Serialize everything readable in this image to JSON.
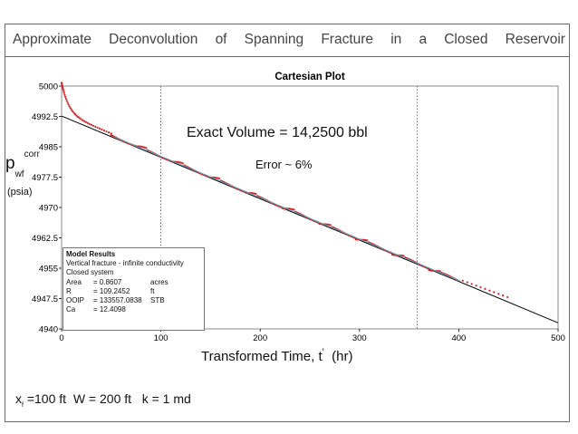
{
  "slide": {
    "title_words": [
      "Approximate",
      "Deconvolution",
      "of",
      "Spanning",
      "Fracture",
      "in",
      "a",
      "Closed",
      "Reservoir"
    ]
  },
  "chart_data": {
    "type": "scatter",
    "title": "Cartesian Plot",
    "xlabel_main": "Transformed  Time, t",
    "xlabel_prime": "'",
    "xlabel_unit": "(hr)",
    "ylabel_base": "p",
    "ylabel_sup": "corr",
    "ylabel_sub": "wf",
    "ylabel_unit": "(psia)",
    "xlim": [
      0,
      500
    ],
    "ylim": [
      4940,
      5000
    ],
    "x_ticks": [
      0,
      100,
      200,
      300,
      400,
      500
    ],
    "y_ticks": [
      5000,
      4992.5,
      4985,
      4977.5,
      4970,
      4962.5,
      4955,
      4947.5,
      4940
    ],
    "y_tick_labels": [
      "5000",
      "4992.5",
      "4985",
      "4977.5",
      "4970",
      "4962.5",
      "4955",
      "4947.5",
      "4940"
    ],
    "vertical_markers": [
      100,
      358
    ],
    "fit_line": {
      "x": [
        0,
        500
      ],
      "y": [
        4992.6,
        4941.5
      ]
    },
    "series_colors": {
      "data": "#d62020",
      "fit": "#000000",
      "model": "#5aa0b8",
      "markers": "#555555"
    },
    "grid": false,
    "annotations": {
      "volume": "Exact Volume = 14,2500 bbl",
      "error": "Error ~ 6%"
    },
    "model_results": {
      "title": "Model Results",
      "lines": [
        "Vertical fracture - infinite conductivity",
        "Closed system"
      ],
      "rows": [
        {
          "label": "Area",
          "value": "= 0.8607",
          "unit": "acres"
        },
        {
          "label": "R",
          "value": "= 109.2452",
          "unit": "ft"
        },
        {
          "label": "OOIP",
          "value": "= 133557.0838",
          "unit": "STB"
        },
        {
          "label": "Ca",
          "value": "= 12.4098",
          "unit": ""
        }
      ]
    }
  },
  "params": {
    "xf_base": "x",
    "xf_sub": "f",
    "xf_value": " =100 ft",
    "w": "W = 200 ft",
    "k": "k = 1 md"
  }
}
